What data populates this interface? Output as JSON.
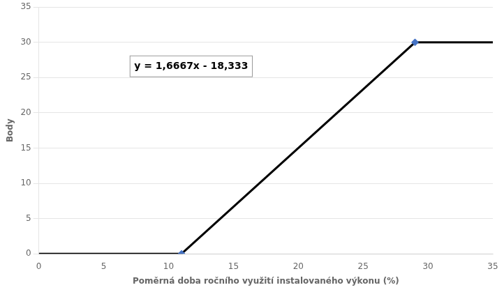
{
  "chart_data": {
    "type": "line",
    "x": [
      0,
      11,
      29,
      35
    ],
    "series": [
      {
        "color": "#000000",
        "values": [
          0,
          0,
          30,
          30
        ],
        "line_style": "solid"
      },
      {
        "color": "#4472C4",
        "values": [
          null,
          0,
          30,
          null
        ],
        "marker": "diamond",
        "line_style": "none"
      }
    ],
    "x_label": "Poměrná doba ročního využití instalovaného výkonu (%)",
    "y_label": "Body",
    "xlim": [
      0,
      35
    ],
    "ylim": [
      0,
      35
    ],
    "xticks": [
      0,
      5,
      10,
      15,
      20,
      25,
      30,
      35
    ],
    "yticks": [
      0,
      5,
      10,
      15,
      20,
      25,
      30,
      35
    ],
    "grid": "y",
    "annotations": [
      "y = 1,6667x - 18,333"
    ]
  }
}
